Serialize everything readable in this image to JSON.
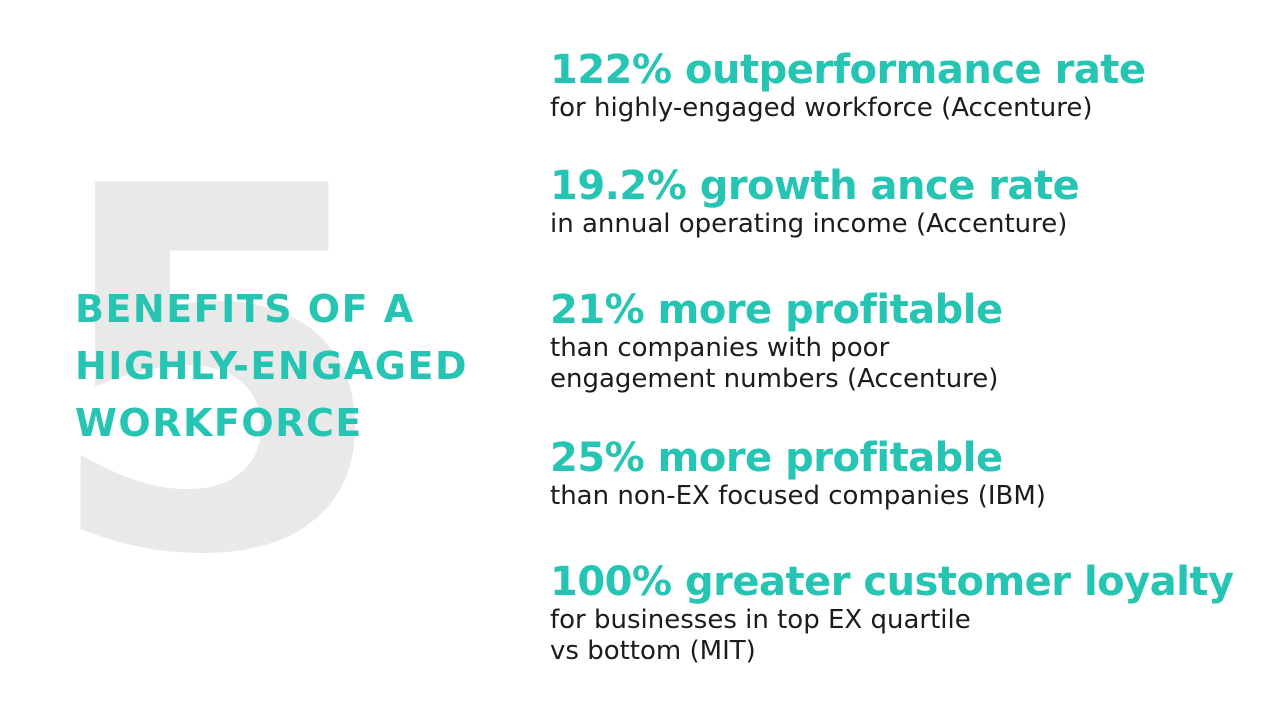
{
  "colors": {
    "background": "#ffffff",
    "accent": "#26c4b3",
    "big_number": "#e9e9e9",
    "body_text": "#1c1c1c"
  },
  "left": {
    "big_number": "5",
    "title_lines": [
      "BENEFITS OF A",
      "HIGHLY-ENGAGED",
      "WORKFORCE"
    ]
  },
  "stats": [
    {
      "headline": "122% outperformance rate",
      "detail_lines": [
        "for highly-engaged workforce (Accenture)"
      ]
    },
    {
      "headline": "19.2% growth ance rate",
      "detail_lines": [
        "in annual operating income (Accenture)"
      ]
    },
    {
      "headline": "21% more profitable",
      "detail_lines": [
        "than companies with poor",
        "engagement numbers (Accenture)"
      ]
    },
    {
      "headline": "25% more profitable",
      "detail_lines": [
        "than non-EX focused companies (IBM)"
      ]
    },
    {
      "headline": "100% greater customer loyalty",
      "detail_lines": [
        "for businesses in top EX quartile",
        "vs bottom (MIT)"
      ]
    }
  ]
}
